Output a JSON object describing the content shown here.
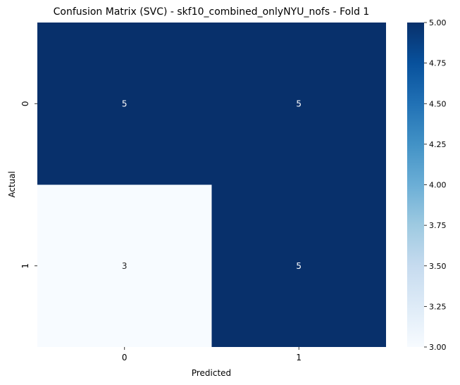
{
  "chart_data": {
    "type": "heatmap",
    "title": "Confusion Matrix (SVC) - skf10_combined_onlyNYU_nofs - Fold 1",
    "xlabel": "Predicted",
    "ylabel": "Actual",
    "x_categories": [
      "0",
      "1"
    ],
    "y_categories": [
      "0",
      "1"
    ],
    "values": [
      [
        5,
        5
      ],
      [
        3,
        5
      ]
    ],
    "value_labels": [
      [
        "5",
        "5"
      ],
      [
        "3",
        "5"
      ]
    ],
    "colormap": "Blues",
    "color_low": "#f7fbff",
    "color_high": "#08306b",
    "colorbar": {
      "range": [
        3.0,
        5.0
      ],
      "ticks": [
        "3.00",
        "3.25",
        "3.50",
        "3.75",
        "4.00",
        "4.25",
        "4.50",
        "4.75",
        "5.00"
      ]
    }
  }
}
